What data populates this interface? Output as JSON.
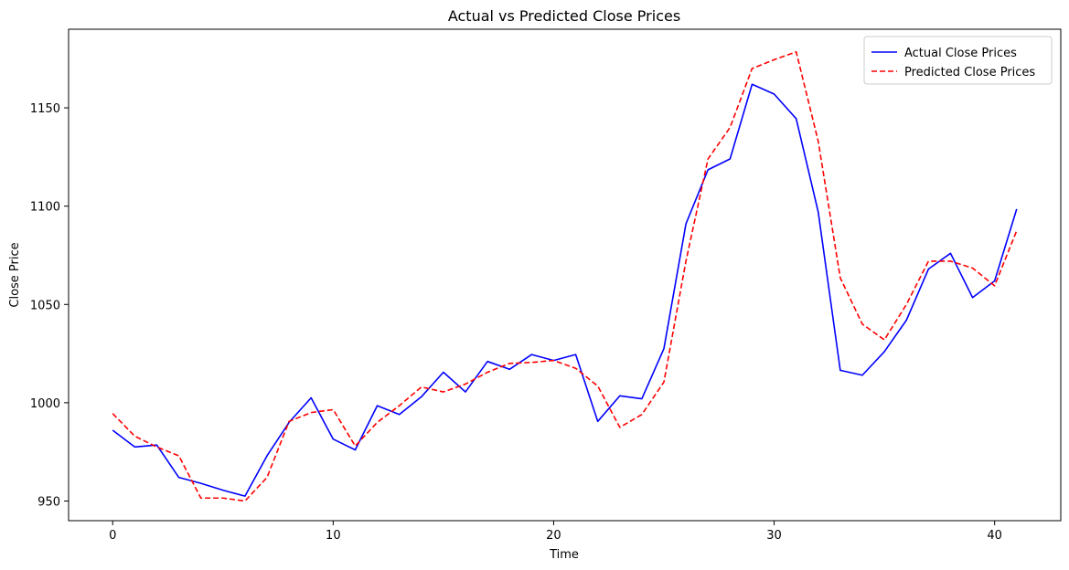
{
  "chart_data": {
    "type": "line",
    "title": "Actual vs Predicted Close Prices",
    "xlabel": "Time",
    "ylabel": "Close Price",
    "xlim": [
      -2,
      43
    ],
    "ylim": [
      940,
      1190
    ],
    "xticks": [
      0,
      10,
      20,
      30,
      40
    ],
    "yticks": [
      950,
      1000,
      1050,
      1100,
      1150
    ],
    "grid": false,
    "legend_position": "top-right",
    "x": [
      0,
      1,
      2,
      3,
      4,
      5,
      6,
      7,
      8,
      9,
      10,
      11,
      12,
      13,
      14,
      15,
      16,
      17,
      18,
      19,
      20,
      21,
      22,
      23,
      24,
      25,
      26,
      27,
      28,
      29,
      30,
      31,
      32,
      33,
      34,
      35,
      36,
      37,
      38,
      39,
      40,
      41
    ],
    "series": [
      {
        "name": "Actual Close Prices",
        "color": "#0000ff",
        "style": "solid",
        "values": [
          986,
          977.5,
          978.5,
          962,
          959,
          955.5,
          952.5,
          973,
          990,
          1002.5,
          981.5,
          976,
          998.5,
          994,
          1003,
          1015.5,
          1005.5,
          1021,
          1017,
          1024.5,
          1021.5,
          1024.5,
          990.5,
          1003.5,
          1002,
          1027.5,
          1091,
          1118.5,
          1124,
          1162,
          1157,
          1144.5,
          1097,
          1016.5,
          1014,
          1026,
          1042,
          1068,
          1076,
          1053.5,
          1062,
          1098.5
        ]
      },
      {
        "name": "Predicted Close Prices",
        "color": "#ff0000",
        "style": "dashed",
        "values": [
          994.5,
          983,
          977.5,
          973,
          951.5,
          951.5,
          950,
          962,
          990.5,
          995,
          996.5,
          978,
          990,
          998.5,
          1008,
          1005.5,
          1009.5,
          1015.5,
          1020,
          1020.5,
          1021.5,
          1017.5,
          1008.5,
          987.5,
          994,
          1010.5,
          1072,
          1124,
          1140,
          1170,
          1174.5,
          1178.5,
          1133,
          1063.5,
          1040,
          1032,
          1050,
          1072,
          1072,
          1068.5,
          1059.5,
          1087.5
        ]
      }
    ]
  }
}
